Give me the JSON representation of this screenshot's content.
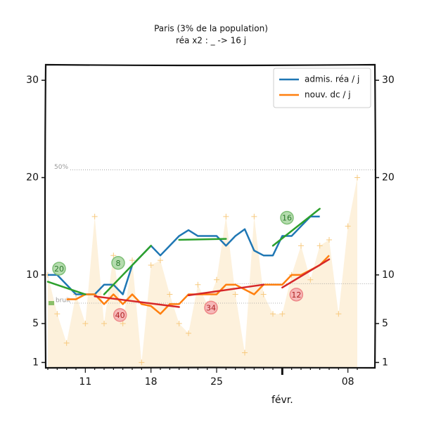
{
  "chart_data": {
    "type": "line",
    "title": "Paris (3% de la population)",
    "subtitle": "réa x2 : _ -> 16 j",
    "categories": [
      null,
      null,
      null,
      null,
      "11",
      null,
      null,
      null,
      null,
      null,
      null,
      "18",
      null,
      null,
      null,
      null,
      null,
      null,
      "25",
      null,
      null,
      null,
      null,
      null,
      null,
      null,
      null,
      null,
      null,
      null,
      null,
      null,
      "08",
      null
    ],
    "month_label": "févr.",
    "month_start": 25,
    "ylim": [
      0.45,
      31.6
    ],
    "yticks": [
      1,
      5,
      10,
      20,
      30
    ],
    "legend": "upper right",
    "series": [
      {
        "name": "admis. réa / j",
        "color": "#1f77b4",
        "values": [
          10,
          10,
          9,
          8,
          8,
          8,
          9,
          9,
          8,
          11,
          12,
          13,
          12,
          13,
          14,
          14.6,
          14,
          14,
          14,
          13,
          14,
          14.7,
          12.5,
          12,
          12,
          14,
          14,
          15,
          16,
          16,
          null,
          null,
          null,
          null
        ]
      },
      {
        "name": "nouv. dc / j",
        "color": "#ff7f0e",
        "values": [
          null,
          null,
          7.5,
          7.5,
          8,
          8,
          7,
          8,
          7,
          8,
          7,
          6.8,
          6,
          7,
          7,
          8,
          8,
          8,
          8,
          9,
          9,
          8.5,
          8,
          9,
          9,
          9,
          10,
          10,
          10.5,
          11,
          12,
          null,
          null,
          null
        ]
      }
    ],
    "raw": {
      "color": "#f7c97e",
      "fill": "#fdf1dc",
      "values": [
        10,
        6,
        3,
        8,
        5,
        16,
        5,
        12,
        5,
        11.5,
        1,
        11,
        11.5,
        8,
        5,
        4,
        9,
        7,
        9.5,
        16,
        8,
        2,
        16,
        8,
        6,
        6,
        10,
        13,
        9.5,
        13,
        13.6,
        6,
        15,
        20
      ]
    },
    "fits": [
      {
        "color": "#2ca02c",
        "x": [
          0,
          4
        ],
        "values": [
          9.3,
          8.0
        ],
        "label": "20"
      },
      {
        "color": "#2ca02c",
        "x": [
          6,
          11
        ],
        "values": [
          8.0,
          13.0
        ],
        "label": "8"
      },
      {
        "color": "#2ca02c",
        "x": [
          14,
          19
        ],
        "values": [
          13.6,
          13.7
        ]
      },
      {
        "color": "#2ca02c",
        "x": [
          24,
          29
        ],
        "values": [
          13.0,
          16.8
        ],
        "label": "16"
      },
      {
        "color": "#d62728",
        "x": [
          5,
          14
        ],
        "values": [
          7.8,
          6.7
        ],
        "label": "40"
      },
      {
        "color": "#d62728",
        "x": [
          15,
          23
        ],
        "values": [
          7.9,
          9.0
        ],
        "label": "34"
      },
      {
        "color": "#d62728",
        "x": [
          25,
          30
        ],
        "values": [
          8.7,
          11.6
        ],
        "label": "12"
      }
    ],
    "reference_lines": [
      {
        "value": 20.8,
        "label": "50%"
      },
      {
        "value": 9.1
      },
      {
        "value": 7.1,
        "label": "bruit"
      }
    ]
  }
}
